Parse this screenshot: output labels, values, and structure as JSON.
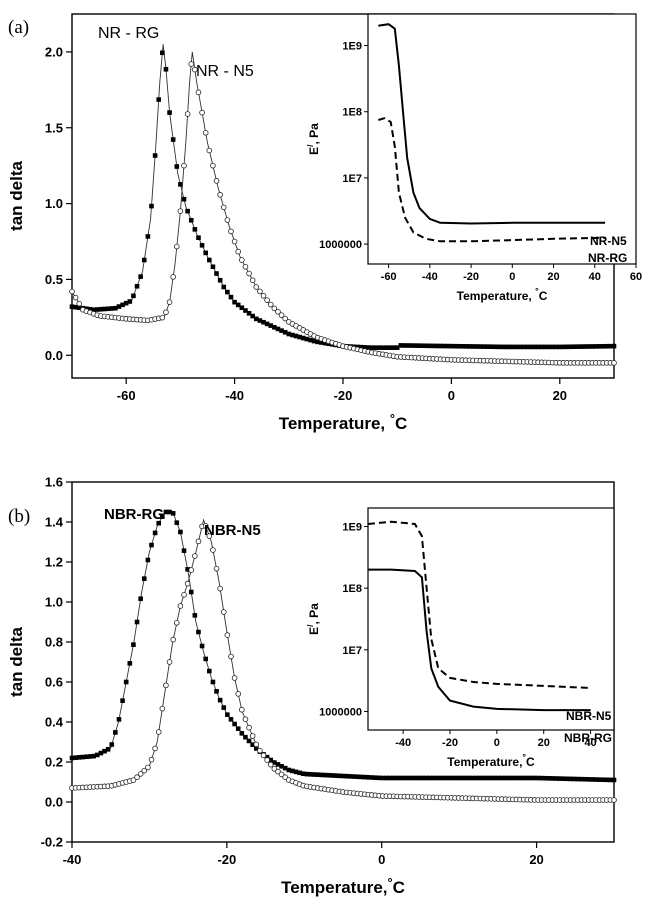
{
  "chart_data": [
    {
      "panel_label": "(a)",
      "type": "scatter",
      "xlabel": "Temperature, °C",
      "ylabel": "tan delta",
      "xlim": [
        -70,
        30
      ],
      "ylim": [
        -0.15,
        2.25
      ],
      "xticks": [
        -60,
        -40,
        -20,
        0,
        20
      ],
      "yticks": [
        0.0,
        0.5,
        1.0,
        1.5,
        2.0
      ],
      "series": [
        {
          "name": "NR - RG",
          "marker": "filled-square",
          "points": [
            [
              -70,
              0.32
            ],
            [
              -66,
              0.3
            ],
            [
              -62,
              0.31
            ],
            [
              -59,
              0.36
            ],
            [
              -57,
              0.55
            ],
            [
              -55.5,
              0.9
            ],
            [
              -54.5,
              1.4
            ],
            [
              -53.8,
              1.8
            ],
            [
              -53.2,
              2.05
            ],
            [
              -52.7,
              1.9
            ],
            [
              -52,
              1.6
            ],
            [
              -50.5,
              1.2
            ],
            [
              -49,
              0.98
            ],
            [
              -47,
              0.8
            ],
            [
              -45,
              0.65
            ],
            [
              -42,
              0.45
            ],
            [
              -40,
              0.35
            ],
            [
              -36,
              0.24
            ],
            [
              -30,
              0.14
            ],
            [
              -25,
              0.09
            ],
            [
              -20,
              0.06
            ],
            [
              -15,
              0.05
            ],
            [
              -10,
              0.05
            ],
            [
              -9.5,
              0.065
            ],
            [
              0,
              0.06
            ],
            [
              10,
              0.055
            ],
            [
              20,
              0.055
            ],
            [
              30,
              0.06
            ]
          ]
        },
        {
          "name": "NR - N5",
          "marker": "open-circle",
          "points": [
            [
              -70,
              0.42
            ],
            [
              -68,
              0.3
            ],
            [
              -65,
              0.26
            ],
            [
              -60,
              0.24
            ],
            [
              -56,
              0.23
            ],
            [
              -53,
              0.25
            ],
            [
              -52,
              0.35
            ],
            [
              -51,
              0.6
            ],
            [
              -50,
              0.95
            ],
            [
              -49,
              1.4
            ],
            [
              -48.3,
              1.8
            ],
            [
              -47.8,
              2.0
            ],
            [
              -47,
              1.8
            ],
            [
              -46,
              1.6
            ],
            [
              -45,
              1.4
            ],
            [
              -43,
              1.1
            ],
            [
              -41,
              0.85
            ],
            [
              -39,
              0.65
            ],
            [
              -36,
              0.45
            ],
            [
              -33,
              0.32
            ],
            [
              -30,
              0.22
            ],
            [
              -25,
              0.12
            ],
            [
              -20,
              0.06
            ],
            [
              -15,
              0.02
            ],
            [
              -10,
              -0.01
            ],
            [
              0,
              -0.03
            ],
            [
              10,
              -0.04
            ],
            [
              20,
              -0.05
            ],
            [
              30,
              -0.05
            ]
          ]
        }
      ],
      "inset": {
        "xlabel": "Temperature, °C",
        "ylabel": "E/, Pa",
        "yscale": "log",
        "xlim": [
          -70,
          60
        ],
        "ylim": [
          500000,
          3000000000
        ],
        "xticks": [
          -60,
          -40,
          -20,
          0,
          20,
          40,
          60
        ],
        "yticks": [
          {
            "v": 1000000,
            "label": "1000000"
          },
          {
            "v": 10000000,
            "label": "1E7"
          },
          {
            "v": 100000000,
            "label": "1E8"
          },
          {
            "v": 1000000000,
            "label": "1E9"
          }
        ],
        "series": [
          {
            "name": "NR-N5",
            "style": "solid",
            "points": [
              [
                -65,
                2000000000
              ],
              [
                -60,
                2100000000
              ],
              [
                -57,
                1800000000
              ],
              [
                -55,
                500000000
              ],
              [
                -53,
                100000000
              ],
              [
                -51,
                20000000
              ],
              [
                -48,
                6000000
              ],
              [
                -45,
                3500000
              ],
              [
                -40,
                2400000
              ],
              [
                -35,
                2100000
              ],
              [
                -20,
                2050000
              ],
              [
                0,
                2100000
              ],
              [
                20,
                2100000
              ],
              [
                45,
                2100000
              ]
            ]
          },
          {
            "name": "NR-RG",
            "style": "dashed",
            "points": [
              [
                -65,
                75000000
              ],
              [
                -62,
                80000000
              ],
              [
                -59,
                70000000
              ],
              [
                -57,
                30000000
              ],
              [
                -55,
                6000000
              ],
              [
                -52,
                2500000
              ],
              [
                -48,
                1500000
              ],
              [
                -42,
                1200000
              ],
              [
                -35,
                1100000
              ],
              [
                -20,
                1100000
              ],
              [
                0,
                1150000
              ],
              [
                20,
                1200000
              ],
              [
                45,
                1250000
              ]
            ]
          }
        ],
        "labels": [
          "NR-N5",
          "NR-RG"
        ]
      }
    },
    {
      "panel_label": "(b)",
      "type": "scatter",
      "xlabel": "Temperature,°C",
      "ylabel": "tan delta",
      "xlim": [
        -40,
        30
      ],
      "ylim": [
        -0.2,
        1.6
      ],
      "xticks": [
        -40,
        -20,
        0,
        20
      ],
      "yticks": [
        -0.2,
        0.0,
        0.2,
        0.4,
        0.6,
        0.8,
        1.0,
        1.2,
        1.4,
        1.6
      ],
      "series": [
        {
          "name": "NBR-RG",
          "marker": "filled-square",
          "points": [
            [
              -40,
              0.22
            ],
            [
              -37,
              0.23
            ],
            [
              -35,
              0.27
            ],
            [
              -34,
              0.4
            ],
            [
              -33,
              0.6
            ],
            [
              -32,
              0.8
            ],
            [
              -31,
              1.05
            ],
            [
              -30,
              1.25
            ],
            [
              -29,
              1.38
            ],
            [
              -28,
              1.45
            ],
            [
              -27,
              1.45
            ],
            [
              -26,
              1.35
            ],
            [
              -25,
              1.15
            ],
            [
              -24,
              0.9
            ],
            [
              -23,
              0.75
            ],
            [
              -22,
              0.62
            ],
            [
              -21,
              0.52
            ],
            [
              -20,
              0.44
            ],
            [
              -18,
              0.34
            ],
            [
              -16,
              0.26
            ],
            [
              -14,
              0.2
            ],
            [
              -12,
              0.16
            ],
            [
              -10,
              0.14
            ],
            [
              -5,
              0.13
            ],
            [
              0,
              0.12
            ],
            [
              10,
              0.12
            ],
            [
              20,
              0.12
            ],
            [
              30,
              0.11
            ]
          ]
        },
        {
          "name": "NBR-N5",
          "marker": "open-circle",
          "points": [
            [
              -40,
              0.07
            ],
            [
              -35,
              0.08
            ],
            [
              -32,
              0.11
            ],
            [
              -30,
              0.18
            ],
            [
              -29,
              0.3
            ],
            [
              -28,
              0.55
            ],
            [
              -27,
              0.8
            ],
            [
              -26,
              0.98
            ],
            [
              -25,
              1.1
            ],
            [
              -24,
              1.25
            ],
            [
              -23,
              1.41
            ],
            [
              -22,
              1.3
            ],
            [
              -21,
              1.1
            ],
            [
              -20,
              0.85
            ],
            [
              -19,
              0.62
            ],
            [
              -18,
              0.45
            ],
            [
              -16,
              0.27
            ],
            [
              -14,
              0.17
            ],
            [
              -12,
              0.11
            ],
            [
              -10,
              0.08
            ],
            [
              -5,
              0.05
            ],
            [
              0,
              0.03
            ],
            [
              10,
              0.02
            ],
            [
              20,
              0.01
            ],
            [
              30,
              0.01
            ]
          ]
        }
      ],
      "inset": {
        "xlabel": "Temperature,°C",
        "ylabel": "E/, Pa",
        "yscale": "log",
        "xlim": [
          -55,
          50
        ],
        "ylim": [
          500000,
          2000000000
        ],
        "xticks": [
          -40,
          -20,
          0,
          20,
          40
        ],
        "yticks": [
          {
            "v": 1000000,
            "label": "1000000"
          },
          {
            "v": 10000000,
            "label": "1E7"
          },
          {
            "v": 100000000,
            "label": "1E8"
          },
          {
            "v": 1000000000,
            "label": "1E9"
          }
        ],
        "series": [
          {
            "name": "NBR-N5",
            "style": "dashed",
            "points": [
              [
                -55,
                1100000000
              ],
              [
                -45,
                1200000000
              ],
              [
                -35,
                1100000000
              ],
              [
                -32,
                700000000
              ],
              [
                -30,
                100000000
              ],
              [
                -28,
                15000000
              ],
              [
                -25,
                5000000
              ],
              [
                -20,
                3500000
              ],
              [
                -10,
                3000000
              ],
              [
                0,
                2800000
              ],
              [
                20,
                2600000
              ],
              [
                40,
                2400000
              ]
            ]
          },
          {
            "name": "NBR-RG",
            "style": "solid",
            "points": [
              [
                -55,
                200000000
              ],
              [
                -45,
                200000000
              ],
              [
                -35,
                190000000
              ],
              [
                -32,
                150000000
              ],
              [
                -30,
                20000000
              ],
              [
                -28,
                5000000
              ],
              [
                -25,
                2500000
              ],
              [
                -20,
                1500000
              ],
              [
                -10,
                1200000
              ],
              [
                0,
                1100000
              ],
              [
                20,
                1050000
              ],
              [
                40,
                1050000
              ]
            ]
          }
        ],
        "labels": [
          "NBR-N5",
          "NBR-RG"
        ]
      }
    }
  ]
}
